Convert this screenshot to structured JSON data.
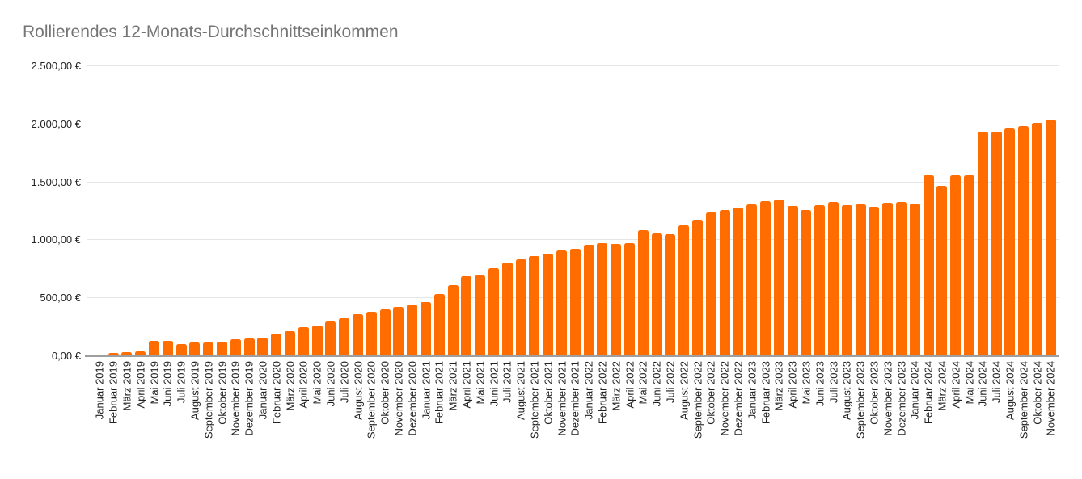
{
  "title": "Rollierendes 12-Monats-Durchschnittseinkommen",
  "colors": {
    "bar": "#FF6D01",
    "title_text": "#757575",
    "axis_text": "#222222",
    "gridline": "#e6e6e6",
    "baseline": "#9e9e9e",
    "background": "#ffffff"
  },
  "chart_data": {
    "type": "bar",
    "title": "Rollierendes 12-Monats-Durchschnittseinkommen",
    "xlabel": "",
    "ylabel": "",
    "ylim": [
      0,
      2500
    ],
    "ytick_step": 500,
    "ytick_labels": [
      "0,00 €",
      "500,00 €",
      "1.000,00 €",
      "1.500,00 €",
      "2.000,00 €",
      "2.500,00 €"
    ],
    "grid": true,
    "legend": "none",
    "categories": [
      "Januar 2019",
      "Februar 2019",
      "März 2019",
      "April 2019",
      "Mai 2019",
      "Juni 2019",
      "Juli 2019",
      "August 2019",
      "September 2019",
      "Oktober 2019",
      "November 2019",
      "Dezember 2019",
      "Januar 2020",
      "Februar 2020",
      "März 2020",
      "April 2020",
      "Mai 2020",
      "Juni 2020",
      "Juli 2020",
      "August 2020",
      "September 2020",
      "Oktober 2020",
      "November 2020",
      "Dezember 2020",
      "Januar 2021",
      "Februar 2021",
      "März 2021",
      "April 2021",
      "Mai 2021",
      "Juni 2021",
      "Juli 2021",
      "August 2021",
      "September 2021",
      "Oktober 2021",
      "November 2021",
      "Dezember 2021",
      "Januar 2022",
      "Februar 2022",
      "März 2022",
      "April 2022",
      "Mai 2022",
      "Juni 2022",
      "Juli 2022",
      "August 2022",
      "September 2022",
      "Oktober 2022",
      "November 2022",
      "Dezember 2022",
      "Januar 2023",
      "Februar 2023",
      "März 2023",
      "April 2023",
      "Mai 2023",
      "Juni 2023",
      "Juli 2023",
      "August 2023",
      "September 2023",
      "Oktober 2023",
      "November 2023",
      "Dezember 2023",
      "Januar 2024",
      "Februar 2024",
      "März 2024",
      "April 2024",
      "Mai 2024",
      "Juni 2024",
      "Juli 2024",
      "August 2024",
      "September 2024",
      "Oktober 2024",
      "November 2024"
    ],
    "values": [
      0,
      20,
      27,
      38,
      125,
      128,
      100,
      110,
      112,
      120,
      137,
      147,
      155,
      188,
      210,
      245,
      258,
      292,
      322,
      355,
      378,
      395,
      420,
      438,
      462,
      530,
      605,
      680,
      692,
      755,
      800,
      830,
      857,
      876,
      908,
      922,
      957,
      968,
      961,
      968,
      1076,
      1053,
      1045,
      1120,
      1172,
      1232,
      1252,
      1274,
      1300,
      1330,
      1347,
      1291,
      1256,
      1298,
      1320,
      1297,
      1303,
      1280,
      1318,
      1325,
      1310,
      1552,
      1463,
      1552,
      1550,
      1928,
      1930,
      1955,
      1975,
      2005,
      2030
    ]
  }
}
